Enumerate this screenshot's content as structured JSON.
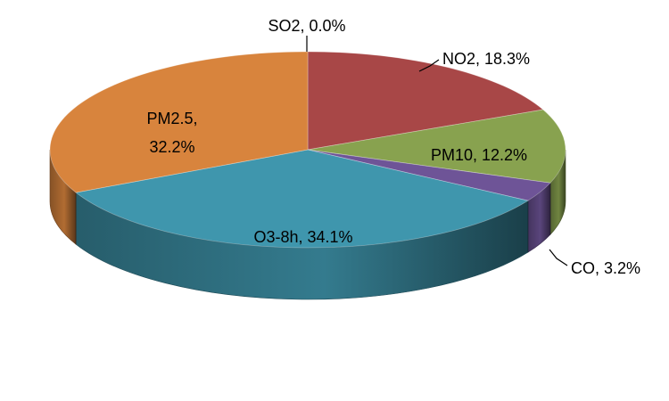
{
  "chart_data": {
    "type": "pie",
    "style": "3d",
    "title": "",
    "slices": [
      {
        "category": "SO2",
        "value": 0.0,
        "label_lines": [
          "SO2, 0.0%"
        ],
        "color": "#8fb6e0"
      },
      {
        "category": "NO2",
        "value": 18.3,
        "label_lines": [
          "NO2, 18.3%"
        ],
        "color": "#a84747"
      },
      {
        "category": "PM10",
        "value": 12.2,
        "label_lines": [
          "PM10, 12.2%"
        ],
        "color": "#88a24f"
      },
      {
        "category": "CO",
        "value": 3.2,
        "label_lines": [
          "CO, 3.2%"
        ],
        "color": "#6e5497"
      },
      {
        "category": "O3-8h",
        "value": 34.1,
        "label_lines": [
          "O3-8h, 34.1%"
        ],
        "color": "#3f96ad"
      },
      {
        "category": "PM2.5",
        "value": 32.2,
        "label_lines": [
          "PM2.5,",
          "32.2%"
        ],
        "color": "#d8843d"
      }
    ]
  }
}
